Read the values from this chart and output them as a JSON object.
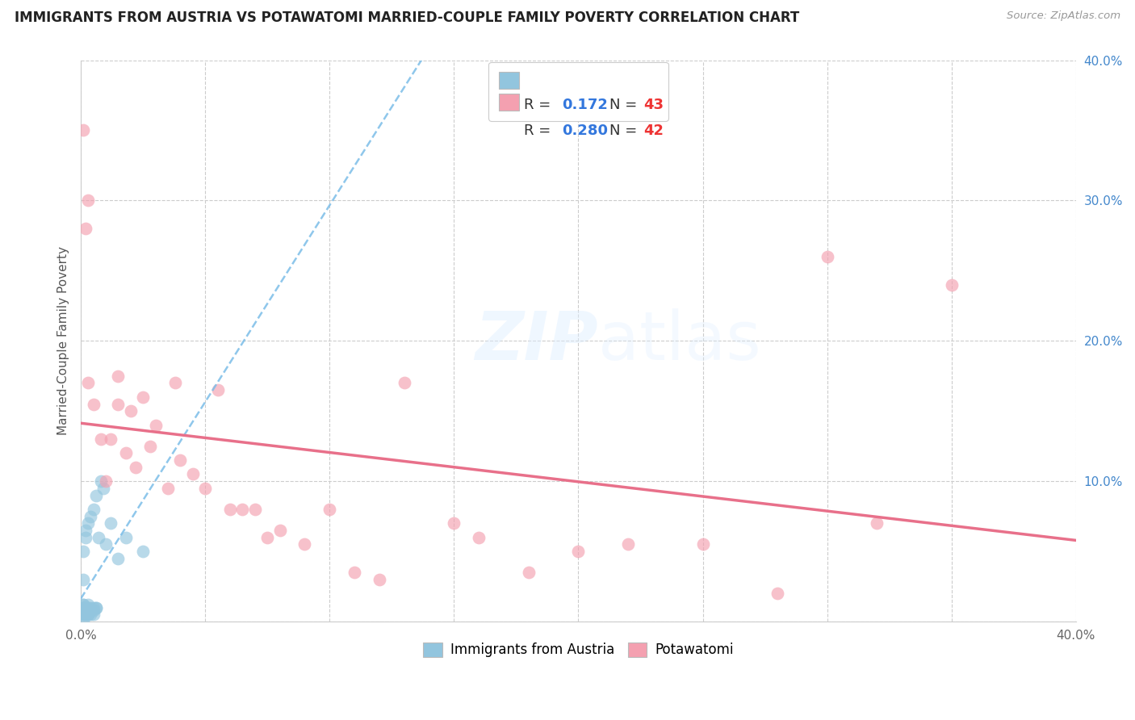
{
  "title": "IMMIGRANTS FROM AUSTRIA VS POTAWATOMI MARRIED-COUPLE FAMILY POVERTY CORRELATION CHART",
  "source": "Source: ZipAtlas.com",
  "ylabel": "Married-Couple Family Poverty",
  "xlim": [
    0.0,
    0.4
  ],
  "ylim": [
    0.0,
    0.4
  ],
  "color_austria": "#92C5DE",
  "color_potawatomi": "#F4A0B0",
  "color_line_austria": "#7BBDE8",
  "color_line_potawatomi": "#E8708A",
  "watermark_zip": "ZIP",
  "watermark_atlas": "atlas",
  "austria_x": [
    0.001,
    0.001,
    0.001,
    0.001,
    0.001,
    0.001,
    0.001,
    0.001,
    0.001,
    0.001,
    0.002,
    0.002,
    0.002,
    0.002,
    0.002,
    0.002,
    0.002,
    0.002,
    0.003,
    0.003,
    0.003,
    0.003,
    0.003,
    0.003,
    0.004,
    0.004,
    0.004,
    0.004,
    0.005,
    0.005,
    0.005,
    0.005,
    0.006,
    0.006,
    0.006,
    0.007,
    0.008,
    0.009,
    0.01,
    0.012,
    0.015,
    0.018,
    0.025
  ],
  "austria_y": [
    0.005,
    0.005,
    0.008,
    0.01,
    0.01,
    0.012,
    0.012,
    0.03,
    0.05,
    0.0,
    0.005,
    0.005,
    0.008,
    0.008,
    0.01,
    0.01,
    0.06,
    0.065,
    0.005,
    0.005,
    0.008,
    0.01,
    0.012,
    0.07,
    0.005,
    0.008,
    0.01,
    0.075,
    0.005,
    0.008,
    0.01,
    0.08,
    0.01,
    0.01,
    0.09,
    0.06,
    0.1,
    0.095,
    0.055,
    0.07,
    0.045,
    0.06,
    0.05
  ],
  "potawatomi_x": [
    0.001,
    0.002,
    0.003,
    0.003,
    0.005,
    0.008,
    0.01,
    0.012,
    0.015,
    0.015,
    0.018,
    0.02,
    0.022,
    0.025,
    0.028,
    0.03,
    0.035,
    0.038,
    0.04,
    0.045,
    0.05,
    0.055,
    0.06,
    0.065,
    0.07,
    0.075,
    0.08,
    0.09,
    0.1,
    0.11,
    0.12,
    0.13,
    0.15,
    0.16,
    0.18,
    0.2,
    0.22,
    0.25,
    0.28,
    0.3,
    0.32,
    0.35
  ],
  "potawatomi_y": [
    0.35,
    0.28,
    0.3,
    0.17,
    0.155,
    0.13,
    0.1,
    0.13,
    0.155,
    0.175,
    0.12,
    0.15,
    0.11,
    0.16,
    0.125,
    0.14,
    0.095,
    0.17,
    0.115,
    0.105,
    0.095,
    0.165,
    0.08,
    0.08,
    0.08,
    0.06,
    0.065,
    0.055,
    0.08,
    0.035,
    0.03,
    0.17,
    0.07,
    0.06,
    0.035,
    0.05,
    0.055,
    0.055,
    0.02,
    0.26,
    0.07,
    0.24
  ],
  "legend_blue_label": "R =  0.172   N = 43",
  "legend_pink_label": "R =  0.280   N = 42",
  "bottom_label1": "Immigrants from Austria",
  "bottom_label2": "Potawatomi"
}
